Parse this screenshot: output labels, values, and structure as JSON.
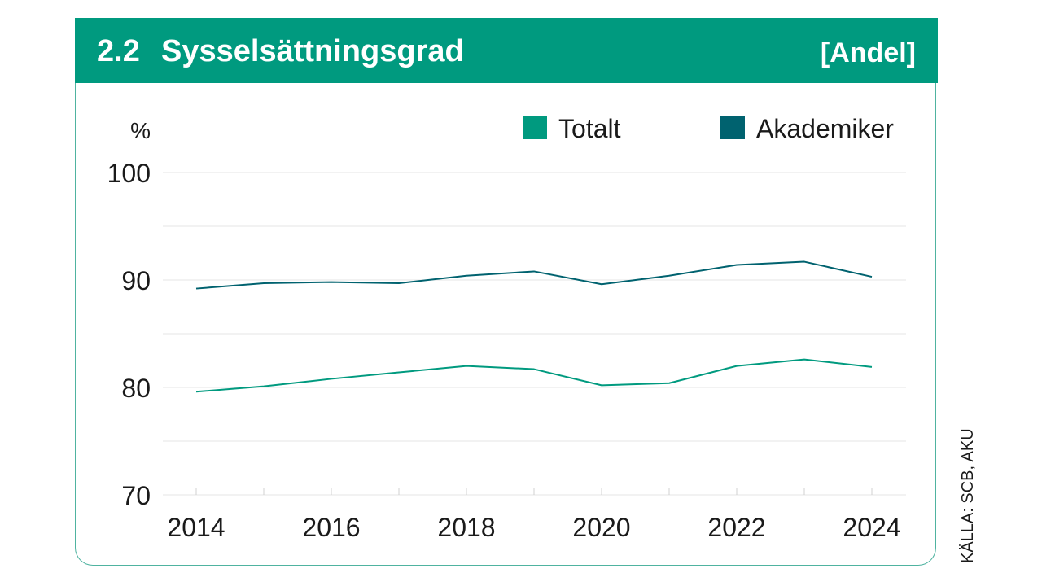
{
  "header": {
    "number": "2.2",
    "title": "Sysselsättningsgrad",
    "unit": "[Andel]"
  },
  "source": "KÄLLA: SCB, AKU",
  "colors": {
    "header_bg": "#009a7f",
    "totalt": "#009a7f",
    "akademiker": "#00626f",
    "border": "#4fb3a0",
    "grid": "#e6e6e6"
  },
  "chart_data": {
    "type": "line",
    "title": "Sysselsättningsgrad",
    "ylabel": "%",
    "xlabel": "",
    "ylim": [
      70,
      100
    ],
    "yticks": [
      "70",
      "80",
      "90",
      "100"
    ],
    "xticks": [
      "2014",
      "2016",
      "2018",
      "2020",
      "2022",
      "2024"
    ],
    "grid": true,
    "legend_position": "top-right",
    "x": [
      2014,
      2015,
      2016,
      2017,
      2018,
      2019,
      2020,
      2021,
      2022,
      2023,
      2024
    ],
    "series": [
      {
        "name": "Totalt",
        "color": "#009a7f",
        "values": [
          79.6,
          80.1,
          80.8,
          81.4,
          82.0,
          81.7,
          80.2,
          80.4,
          82.0,
          82.6,
          81.9
        ]
      },
      {
        "name": "Akademiker",
        "color": "#00626f",
        "values": [
          89.2,
          89.7,
          89.8,
          89.7,
          90.4,
          90.8,
          89.6,
          90.4,
          91.4,
          91.7,
          90.3
        ]
      }
    ]
  }
}
